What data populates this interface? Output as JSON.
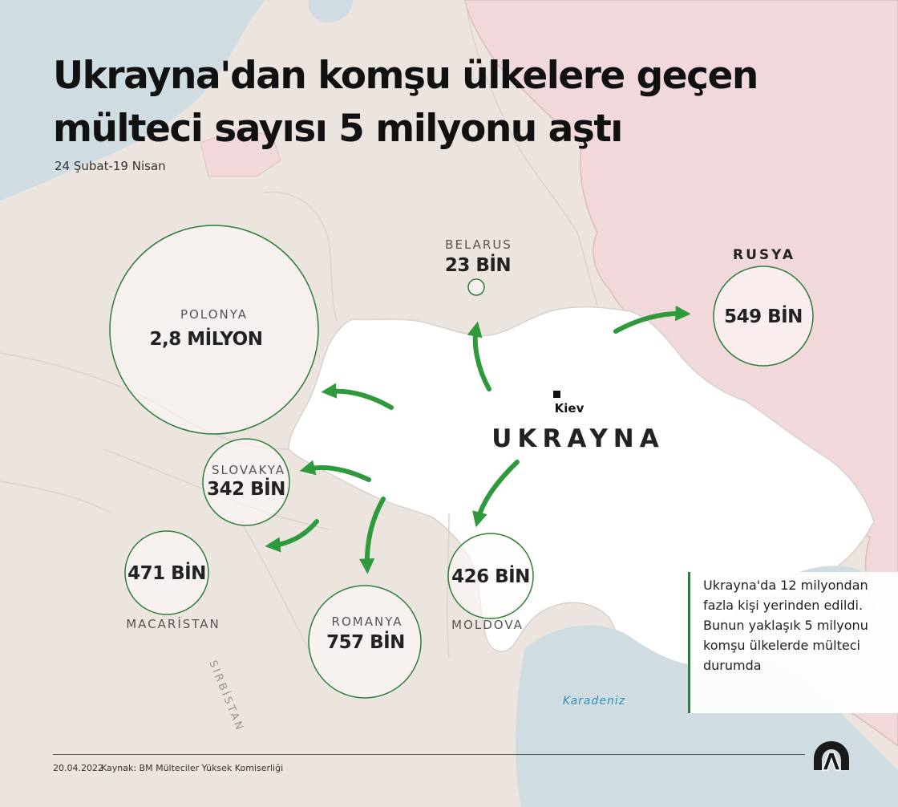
{
  "title": "Ukrayna'dan komşu ülkelere geçen mülteci sayısı 5 milyonu aştı",
  "subtitle": "24 Şubat-19 Nisan",
  "countries": [
    {
      "id": "polonya",
      "name": "POLONYA",
      "value": "2,8 MİLYON"
    },
    {
      "id": "belarus",
      "name": "BELARUS",
      "value": "23 BİN"
    },
    {
      "id": "rusya",
      "name": "RUSYA",
      "value": "549 BİN"
    },
    {
      "id": "slovakya",
      "name": "SLOVAKYA",
      "value": "342 BİN"
    },
    {
      "id": "macaristan",
      "name": "MACARİSTAN",
      "value": "471 BİN"
    },
    {
      "id": "romanya",
      "name": "ROMANYA",
      "value": "757 BİN"
    },
    {
      "id": "moldova",
      "name": "MOLDOVA",
      "value": "426 BİN"
    }
  ],
  "map_labels": {
    "ukraine": "UKRAYNA",
    "capital": "Kiev",
    "sea": "Karadeniz",
    "serbia": "SIRBİSTAN"
  },
  "note": "Ukrayna'da 12 milyondan fazla kişi yerinden edildi. Bunun yaklaşık 5 milyonu komşu ülkelerde mülteci durumda",
  "footer": {
    "date": "20.04.2022",
    "source": "Kaynak: BM Mülteciler Yüksek Komiserliği"
  },
  "colors": {
    "accent_green": "#2e7d3a",
    "arrow_green": "#2f9a3c",
    "water": "#cfdde3",
    "russia": "#f1d8da",
    "land": "#efe6e2",
    "ukraine": "#ffffff"
  }
}
